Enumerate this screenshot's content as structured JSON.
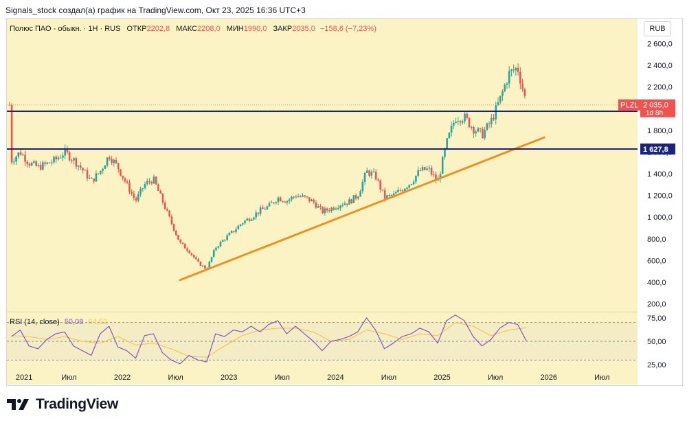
{
  "header": {
    "attribution": "Signals_stock создал(а) график на TradingView.com, Окт 23, 2025 16:36 UTC+3"
  },
  "legend": {
    "symbol": "Полюс ПАО - обыкн. · 1Н · RUS",
    "open_label": "ОТКР",
    "open": "2202,8",
    "high_label": "МАКС",
    "high": "2208,0",
    "low_label": "МИН",
    "low": "1990,0",
    "close_label": "ЗАКР",
    "close": "2035,0",
    "change": "−158,6 (−7,23%)"
  },
  "currency": "RUB",
  "rsi_legend": {
    "label": "RSI (14, close)",
    "rsi": "50,08",
    "ma": "64,52"
  },
  "brand": {
    "name": "TradingView"
  },
  "colors": {
    "background": "#fbf3c4",
    "rsi_band": "#f3ecc4",
    "up": "#26a69a",
    "down": "#ef5350",
    "level_line": "#1a237e",
    "trendline": "#f0901e",
    "rsi_line": "#7e57c2",
    "rsi_ma": "#f2c94c"
  },
  "chart_data": [
    {
      "type": "candlestick",
      "title": "Полюс ПАО - обыкн. · 1Н · RUS",
      "x_ticks": [
        "2021",
        "Июл",
        "2022",
        "Июл",
        "2023",
        "Июл",
        "2024",
        "Июл",
        "2025",
        "Июл",
        "2026",
        "Июл"
      ],
      "x_range": [
        "2020-12",
        "2026-10"
      ],
      "y_ticks": [
        "2 600,0",
        "2 400,0",
        "2 200,0",
        "2 000,0",
        "1 800,0",
        "1 600,0",
        "1 400,0",
        "1 200,0",
        "1 000,0",
        "800,0",
        "600,0",
        "400,0",
        "200,0"
      ],
      "ylim": [
        140,
        2660
      ],
      "series": [
        {
          "approx_close_path": [
            [
              "2020-12",
              1520
            ],
            [
              "2021-01",
              1600
            ],
            [
              "2021-02",
              1500
            ],
            [
              "2021-03",
              1460
            ],
            [
              "2021-04",
              1490
            ],
            [
              "2021-05",
              1530
            ],
            [
              "2021-06",
              1600
            ],
            [
              "2021-07",
              1530
            ],
            [
              "2021-08",
              1440
            ],
            [
              "2021-09",
              1330
            ],
            [
              "2021-10",
              1420
            ],
            [
              "2021-11",
              1570
            ],
            [
              "2021-12",
              1460
            ],
            [
              "2022-01",
              1300
            ],
            [
              "2022-02",
              1150
            ],
            [
              "2022-03",
              1300
            ],
            [
              "2022-04",
              1350
            ],
            [
              "2022-05",
              1150
            ],
            [
              "2022-06",
              950
            ],
            [
              "2022-07",
              760
            ],
            [
              "2022-08",
              690
            ],
            [
              "2022-09",
              580
            ],
            [
              "2022-10",
              520
            ],
            [
              "2022-11",
              720
            ],
            [
              "2022-12",
              800
            ],
            [
              "2023-01",
              870
            ],
            [
              "2023-02",
              950
            ],
            [
              "2023-03",
              1000
            ],
            [
              "2023-04",
              1060
            ],
            [
              "2023-05",
              1100
            ],
            [
              "2023-06",
              1180
            ],
            [
              "2023-07",
              1150
            ],
            [
              "2023-08",
              1200
            ],
            [
              "2023-09",
              1180
            ],
            [
              "2023-10",
              1140
            ],
            [
              "2023-11",
              1050
            ],
            [
              "2023-12",
              1080
            ],
            [
              "2024-01",
              1120
            ],
            [
              "2024-02",
              1140
            ],
            [
              "2024-03",
              1200
            ],
            [
              "2024-04",
              1420
            ],
            [
              "2024-05",
              1380
            ],
            [
              "2024-06",
              1180
            ],
            [
              "2024-07",
              1200
            ],
            [
              "2024-08",
              1260
            ],
            [
              "2024-09",
              1320
            ],
            [
              "2024-10",
              1430
            ],
            [
              "2024-11",
              1440
            ],
            [
              "2024-12",
              1320
            ],
            [
              "2025-01",
              1680
            ],
            [
              "2025-02",
              1920
            ],
            [
              "2025-03",
              1920
            ],
            [
              "2025-04",
              1820
            ],
            [
              "2025-05",
              1760
            ],
            [
              "2025-06",
              1880
            ],
            [
              "2025-07",
              2080
            ],
            [
              "2025-08",
              2320
            ],
            [
              "2025-09",
              2380
            ],
            [
              "2025-10",
              2035
            ]
          ]
        }
      ],
      "last_price": {
        "symbol": "PLZL",
        "value": "2 035,0",
        "countdown": "1d 8h"
      },
      "horizontal_levels": [
        {
          "value": 1975.8,
          "label": "1 975,8"
        },
        {
          "value": 1627.8,
          "label": "1 627,8"
        }
      ],
      "trendline": {
        "start": [
          "2022-07",
          420
        ],
        "end": [
          "2025-12",
          1735
        ]
      },
      "grid": false
    },
    {
      "type": "line",
      "title": "RSI (14, close)",
      "y_ticks": [
        "75,00",
        "50,00",
        "25,00"
      ],
      "ylim": [
        20,
        80
      ],
      "band": [
        30,
        70
      ],
      "series": [
        {
          "name": "RSI (14, close)",
          "values": [
            [
              "2020-12",
              55
            ],
            [
              "2021-01",
              62
            ],
            [
              "2021-02",
              45
            ],
            [
              "2021-03",
              42
            ],
            [
              "2021-04",
              52
            ],
            [
              "2021-05",
              58
            ],
            [
              "2021-06",
              60
            ],
            [
              "2021-07",
              45
            ],
            [
              "2021-08",
              40
            ],
            [
              "2021-09",
              35
            ],
            [
              "2021-10",
              58
            ],
            [
              "2021-11",
              66
            ],
            [
              "2021-12",
              44
            ],
            [
              "2022-01",
              40
            ],
            [
              "2022-02",
              32
            ],
            [
              "2022-03",
              56
            ],
            [
              "2022-04",
              58
            ],
            [
              "2022-05",
              38
            ],
            [
              "2022-06",
              30
            ],
            [
              "2022-07",
              26
            ],
            [
              "2022-08",
              35
            ],
            [
              "2022-09",
              30
            ],
            [
              "2022-10",
              28
            ],
            [
              "2022-11",
              58
            ],
            [
              "2022-12",
              55
            ],
            [
              "2023-01",
              62
            ],
            [
              "2023-02",
              60
            ],
            [
              "2023-03",
              66
            ],
            [
              "2023-04",
              60
            ],
            [
              "2023-05",
              68
            ],
            [
              "2023-06",
              72
            ],
            [
              "2023-07",
              58
            ],
            [
              "2023-08",
              66
            ],
            [
              "2023-09",
              58
            ],
            [
              "2023-10",
              50
            ],
            [
              "2023-11",
              40
            ],
            [
              "2023-12",
              50
            ],
            [
              "2024-01",
              52
            ],
            [
              "2024-02",
              55
            ],
            [
              "2024-03",
              60
            ],
            [
              "2024-04",
              75
            ],
            [
              "2024-05",
              62
            ],
            [
              "2024-06",
              42
            ],
            [
              "2024-07",
              48
            ],
            [
              "2024-08",
              55
            ],
            [
              "2024-09",
              58
            ],
            [
              "2024-10",
              64
            ],
            [
              "2024-11",
              60
            ],
            [
              "2024-12",
              48
            ],
            [
              "2025-01",
              72
            ],
            [
              "2025-02",
              78
            ],
            [
              "2025-03",
              72
            ],
            [
              "2025-04",
              55
            ],
            [
              "2025-05",
              45
            ],
            [
              "2025-06",
              52
            ],
            [
              "2025-07",
              64
            ],
            [
              "2025-08",
              70
            ],
            [
              "2025-09",
              68
            ],
            [
              "2025-10",
              50.08
            ]
          ]
        },
        {
          "name": "RSI-based MA",
          "values": [
            [
              "2020-12",
              56
            ],
            [
              "2021-02",
              55
            ],
            [
              "2021-04",
              52
            ],
            [
              "2021-06",
              55
            ],
            [
              "2021-08",
              50
            ],
            [
              "2021-10",
              48
            ],
            [
              "2021-12",
              55
            ],
            [
              "2022-02",
              46
            ],
            [
              "2022-04",
              48
            ],
            [
              "2022-06",
              42
            ],
            [
              "2022-08",
              34
            ],
            [
              "2022-10",
              33
            ],
            [
              "2022-12",
              45
            ],
            [
              "2023-02",
              56
            ],
            [
              "2023-04",
              62
            ],
            [
              "2023-06",
              64
            ],
            [
              "2023-08",
              64
            ],
            [
              "2023-10",
              60
            ],
            [
              "2023-12",
              50
            ],
            [
              "2024-02",
              52
            ],
            [
              "2024-04",
              62
            ],
            [
              "2024-06",
              58
            ],
            [
              "2024-08",
              52
            ],
            [
              "2024-10",
              58
            ],
            [
              "2024-12",
              56
            ],
            [
              "2025-02",
              70
            ],
            [
              "2025-04",
              66
            ],
            [
              "2025-06",
              56
            ],
            [
              "2025-08",
              62
            ],
            [
              "2025-10",
              64.52
            ]
          ]
        }
      ]
    }
  ]
}
